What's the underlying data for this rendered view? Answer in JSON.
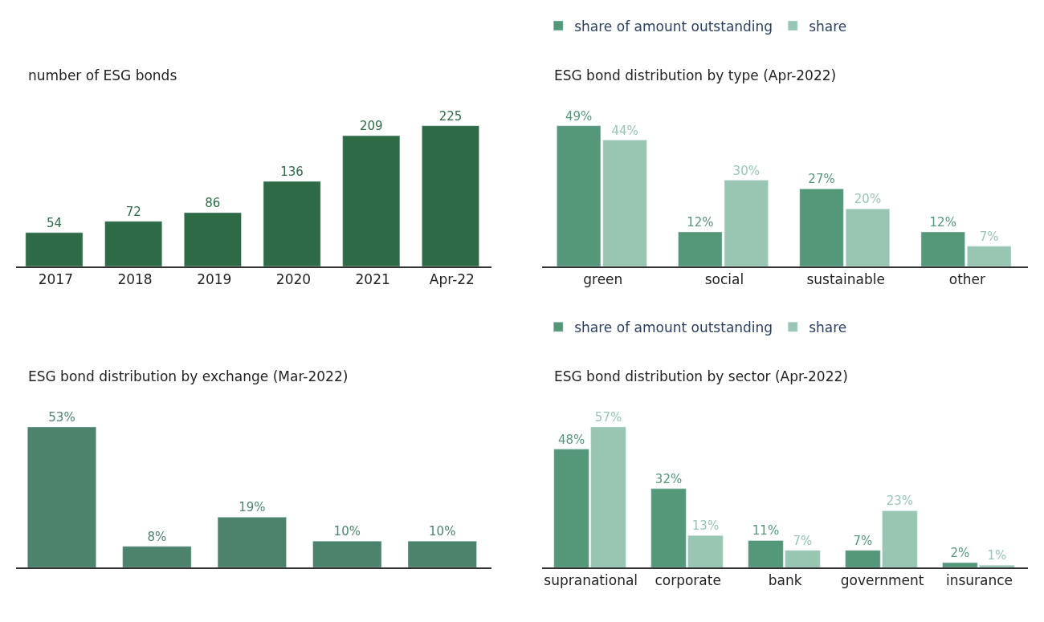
{
  "chart_data": [
    {
      "type": "bar",
      "title": "number of ESG bonds",
      "categories": [
        "2017",
        "2018",
        "2019",
        "2020",
        "2021",
        "Apr-22"
      ],
      "data_labels": true,
      "series": [
        {
          "color": "#2d6a45",
          "values": [
            54,
            72,
            86,
            136,
            209,
            225
          ]
        }
      ]
    },
    {
      "type": "bar",
      "title": "ESG bond distribution by type (Apr-2022)",
      "categories": [
        "green",
        "social",
        "sustainable",
        "other"
      ],
      "legend": "top",
      "series": [
        {
          "name": "share of amount outstanding",
          "color": "#559779",
          "values": [
            49,
            12,
            27,
            12
          ],
          "value_labels": [
            "49%",
            "12%",
            "27%",
            "12%"
          ]
        },
        {
          "name": "share",
          "color": "#98c6b3",
          "values": [
            44,
            30,
            20,
            7
          ],
          "value_labels": [
            "44%",
            "30%",
            "20%",
            "7%"
          ]
        }
      ]
    },
    {
      "type": "bar",
      "title": "ESG bond distribution by exchange (Mar-2022)",
      "categories": [
        null,
        null,
        null,
        null,
        null
      ],
      "series": [
        {
          "color": "#4d826c",
          "values": [
            53,
            8,
            19,
            10,
            10
          ],
          "value_labels": [
            "53%",
            "8%",
            "19%",
            "10%",
            "10%"
          ]
        }
      ]
    },
    {
      "type": "bar",
      "title": "ESG bond distribution by sector (Apr-2022)",
      "categories": [
        "supranational",
        "corporate",
        "bank",
        "government",
        "insurance"
      ],
      "legend": "top",
      "series": [
        {
          "name": "share of amount outstanding",
          "color": "#559779",
          "values": [
            48,
            32,
            11,
            7,
            2
          ],
          "value_labels": [
            "48%",
            "32%",
            "11%",
            "7%",
            "2%"
          ]
        },
        {
          "name": "share",
          "color": "#98c6b3",
          "values": [
            57,
            13,
            7,
            23,
            1
          ],
          "value_labels": [
            "57%",
            "13%",
            "7%",
            "23%",
            "1%"
          ]
        }
      ]
    }
  ]
}
